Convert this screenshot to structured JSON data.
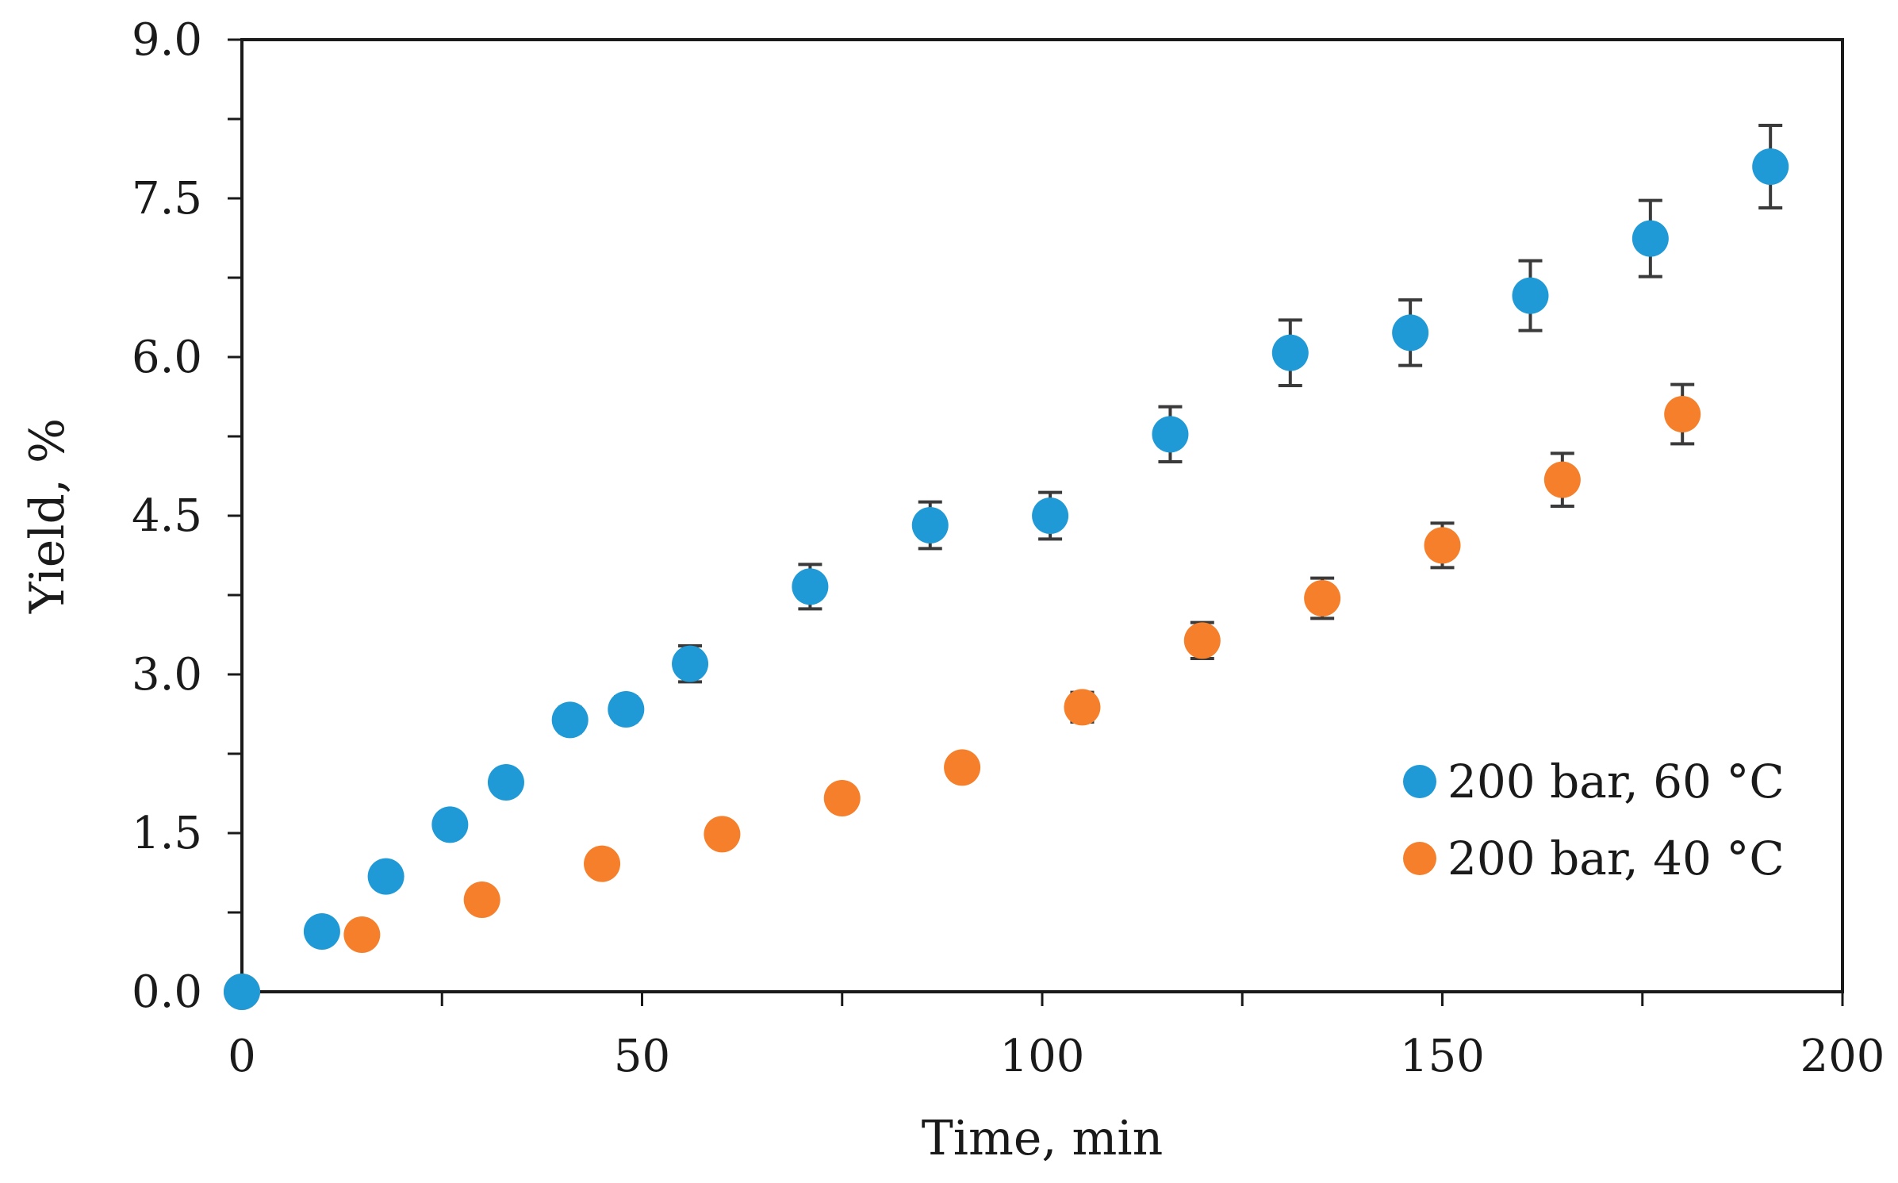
{
  "chart_data": {
    "type": "scatter",
    "title": "",
    "xlabel": "Time, min",
    "ylabel": "Yield, %",
    "xlim": [
      0,
      200
    ],
    "ylim": [
      0,
      9
    ],
    "x_ticks": [
      0,
      50,
      100,
      150,
      200
    ],
    "x_tick_labels": [
      "0",
      "50",
      "100",
      "150",
      "200"
    ],
    "y_ticks": [
      0,
      1.5,
      3,
      4.5,
      6,
      7.5,
      9
    ],
    "y_tick_labels": [
      "0.0",
      "1.5",
      "3.0",
      "4.5",
      "6.0",
      "7.5",
      "9.0"
    ],
    "grid": false,
    "legend_position": "lower-right",
    "series": [
      {
        "name": "200 bar, 60 °C",
        "color": "#1f9ad6",
        "x": [
          0,
          10,
          18,
          26,
          33,
          41,
          48,
          56,
          71,
          86,
          101,
          116,
          131,
          146,
          161,
          176,
          191
        ],
        "y": [
          0,
          0.57,
          1.09,
          1.58,
          1.98,
          2.57,
          2.67,
          3.1,
          3.83,
          4.41,
          4.5,
          5.27,
          6.04,
          6.23,
          6.58,
          7.12,
          7.8
        ],
        "error": [
          0,
          0,
          0,
          0,
          0,
          0.12,
          0.12,
          0.17,
          0.21,
          0.22,
          0.22,
          0.26,
          0.31,
          0.31,
          0.33,
          0.36,
          0.39
        ]
      },
      {
        "name": "200 bar, 40 °C",
        "color": "#f57f2a",
        "x": [
          0,
          15,
          30,
          45,
          60,
          75,
          90,
          105,
          120,
          135,
          150,
          165,
          180
        ],
        "y": [
          0,
          0.54,
          0.87,
          1.21,
          1.49,
          1.83,
          2.12,
          2.69,
          3.32,
          3.72,
          4.22,
          4.84,
          5.46
        ],
        "error": [
          0,
          0,
          0,
          0,
          0,
          0,
          0.11,
          0.14,
          0.17,
          0.19,
          0.21,
          0.25,
          0.28
        ]
      }
    ]
  }
}
